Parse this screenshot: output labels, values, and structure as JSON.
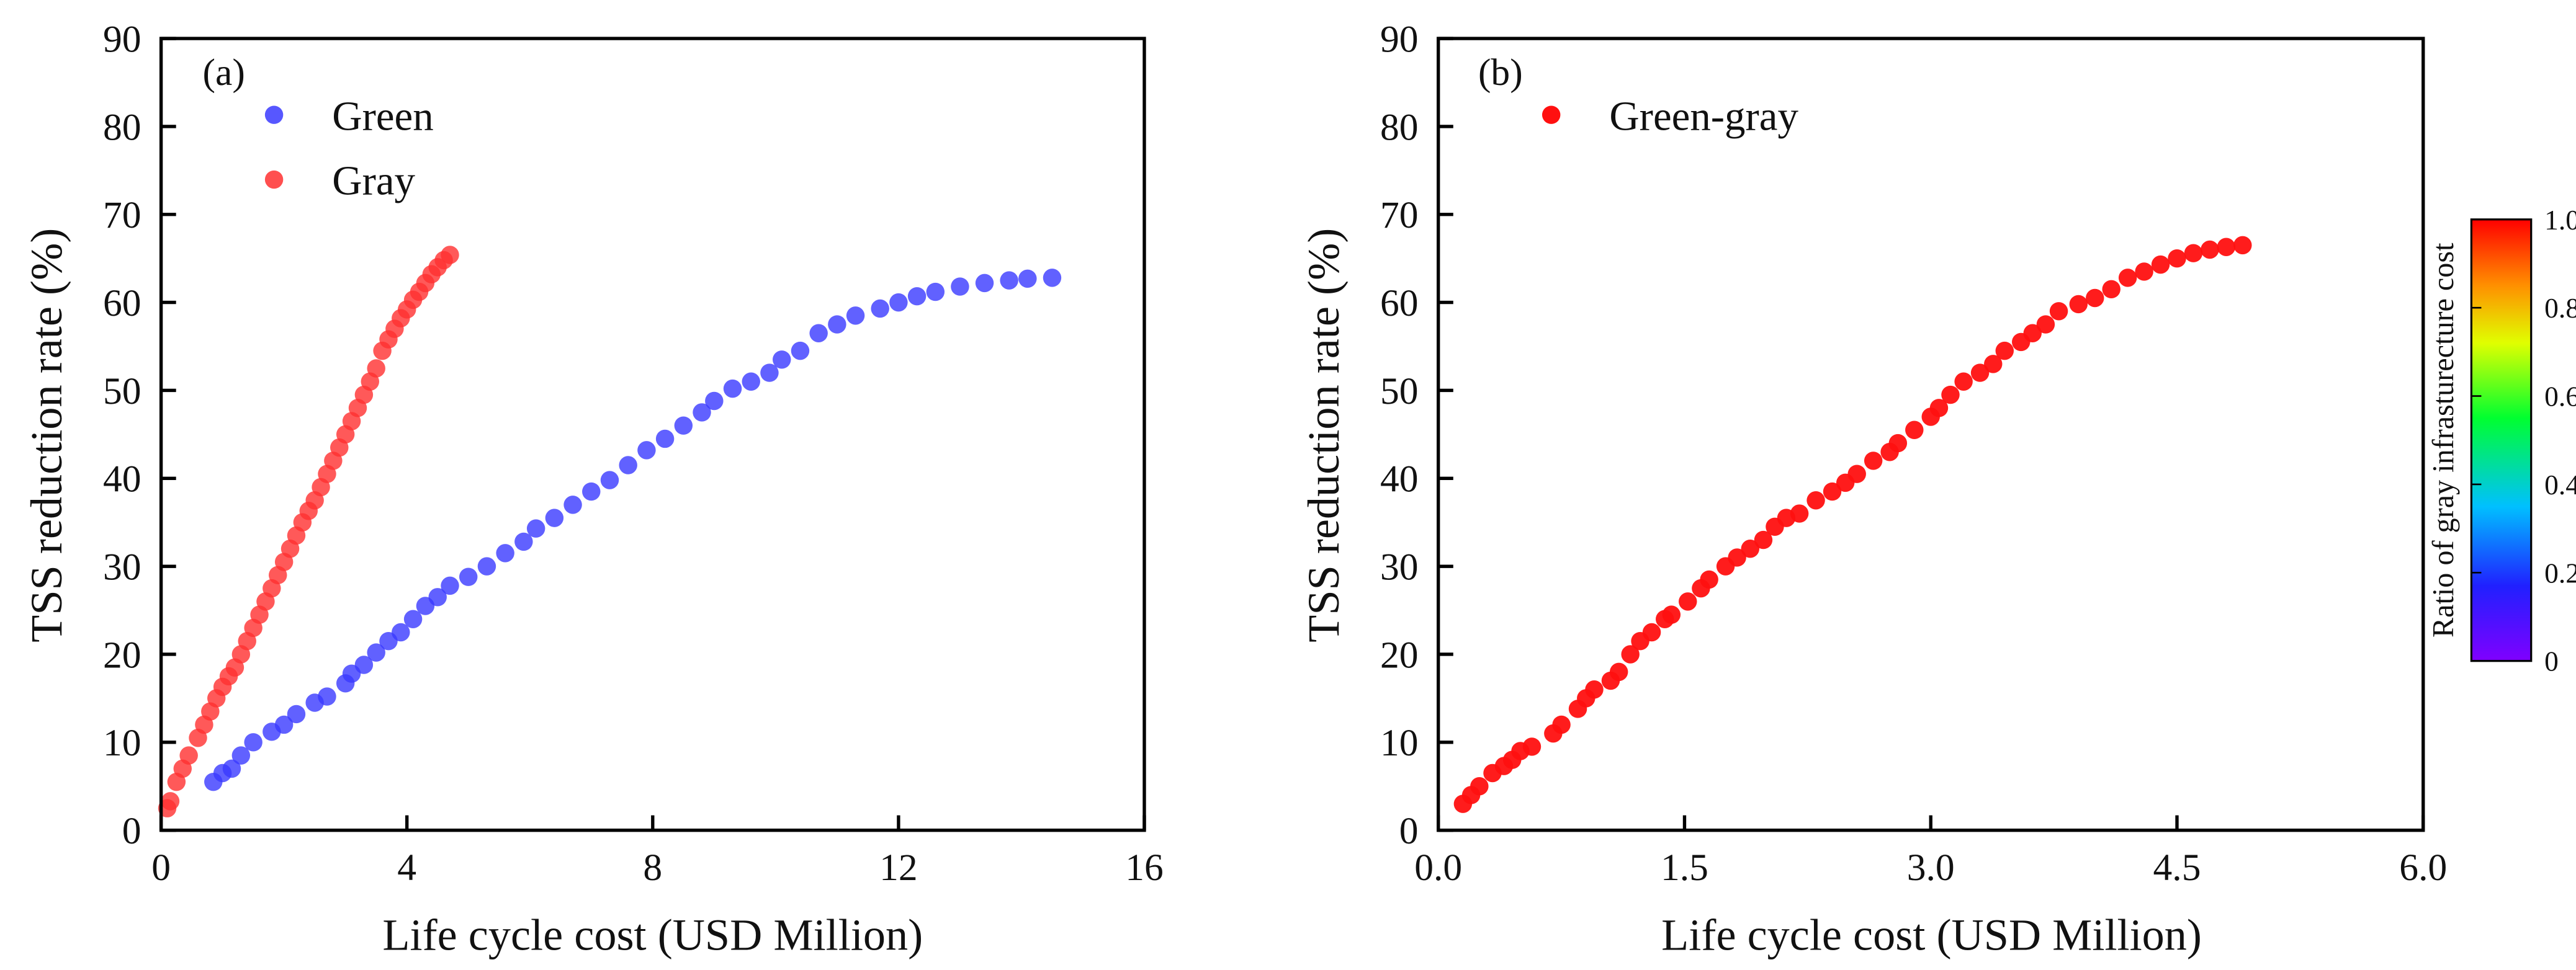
{
  "chart_data": [
    {
      "type": "scatter",
      "panel_label": "(a)",
      "xlabel": "Life cycle cost (USD Million)",
      "ylabel": "TSS reduction rate (%)",
      "xlim": [
        0,
        16
      ],
      "ylim": [
        0,
        90
      ],
      "xticks": [
        0,
        4,
        8,
        12,
        16
      ],
      "yticks": [
        0,
        10,
        20,
        30,
        40,
        50,
        60,
        70,
        80,
        90
      ],
      "grid": false,
      "legend_position": "top-left",
      "series": [
        {
          "name": "Green",
          "color": "#3a3aff",
          "points": [
            [
              0.85,
              5.5
            ],
            [
              1.0,
              6.5
            ],
            [
              1.15,
              7
            ],
            [
              1.3,
              8.5
            ],
            [
              1.5,
              10
            ],
            [
              1.8,
              11.2
            ],
            [
              2.0,
              12
            ],
            [
              2.2,
              13.2
            ],
            [
              2.5,
              14.5
            ],
            [
              2.7,
              15.2
            ],
            [
              3.0,
              16.7
            ],
            [
              3.1,
              17.8
            ],
            [
              3.3,
              18.8
            ],
            [
              3.5,
              20.2
            ],
            [
              3.7,
              21.5
            ],
            [
              3.9,
              22.5
            ],
            [
              4.1,
              24
            ],
            [
              4.3,
              25.5
            ],
            [
              4.5,
              26.5
            ],
            [
              4.7,
              27.8
            ],
            [
              5.0,
              28.8
            ],
            [
              5.3,
              30
            ],
            [
              5.6,
              31.5
            ],
            [
              5.9,
              32.8
            ],
            [
              6.1,
              34.3
            ],
            [
              6.4,
              35.5
            ],
            [
              6.7,
              37
            ],
            [
              7.0,
              38.5
            ],
            [
              7.3,
              39.8
            ],
            [
              7.6,
              41.5
            ],
            [
              7.9,
              43.2
            ],
            [
              8.2,
              44.5
            ],
            [
              8.5,
              46
            ],
            [
              8.8,
              47.5
            ],
            [
              9.0,
              48.8
            ],
            [
              9.3,
              50.2
            ],
            [
              9.6,
              51
            ],
            [
              9.9,
              52
            ],
            [
              10.1,
              53.5
            ],
            [
              10.4,
              54.5
            ],
            [
              10.7,
              56.5
            ],
            [
              11.0,
              57.5
            ],
            [
              11.3,
              58.5
            ],
            [
              11.7,
              59.3
            ],
            [
              12.0,
              60
            ],
            [
              12.3,
              60.7
            ],
            [
              12.6,
              61.2
            ],
            [
              13.0,
              61.8
            ],
            [
              13.4,
              62.2
            ],
            [
              13.8,
              62.5
            ],
            [
              14.1,
              62.7
            ],
            [
              14.5,
              62.8
            ]
          ]
        },
        {
          "name": "Gray",
          "color": "#ff3030",
          "points": [
            [
              0.1,
              2.5
            ],
            [
              0.15,
              3.3
            ],
            [
              0.25,
              5.5
            ],
            [
              0.35,
              7
            ],
            [
              0.45,
              8.5
            ],
            [
              0.6,
              10.5
            ],
            [
              0.7,
              12
            ],
            [
              0.8,
              13.5
            ],
            [
              0.9,
              15
            ],
            [
              1.0,
              16.3
            ],
            [
              1.1,
              17.5
            ],
            [
              1.2,
              18.5
            ],
            [
              1.3,
              20
            ],
            [
              1.4,
              21.5
            ],
            [
              1.5,
              23
            ],
            [
              1.6,
              24.5
            ],
            [
              1.7,
              26
            ],
            [
              1.8,
              27.5
            ],
            [
              1.9,
              29
            ],
            [
              2.0,
              30.5
            ],
            [
              2.1,
              32
            ],
            [
              2.2,
              33.5
            ],
            [
              2.3,
              35
            ],
            [
              2.4,
              36.3
            ],
            [
              2.5,
              37.5
            ],
            [
              2.6,
              39
            ],
            [
              2.7,
              40.5
            ],
            [
              2.8,
              42
            ],
            [
              2.9,
              43.5
            ],
            [
              3.0,
              45
            ],
            [
              3.1,
              46.5
            ],
            [
              3.2,
              48
            ],
            [
              3.3,
              49.5
            ],
            [
              3.4,
              51
            ],
            [
              3.5,
              52.5
            ],
            [
              3.6,
              54.5
            ],
            [
              3.7,
              55.8
            ],
            [
              3.8,
              57
            ],
            [
              3.9,
              58.2
            ],
            [
              4.0,
              59.2
            ],
            [
              4.1,
              60.3
            ],
            [
              4.2,
              61.2
            ],
            [
              4.3,
              62.2
            ],
            [
              4.4,
              63.2
            ],
            [
              4.5,
              64
            ],
            [
              4.6,
              64.8
            ],
            [
              4.7,
              65.4
            ]
          ]
        }
      ]
    },
    {
      "type": "scatter",
      "panel_label": "(b)",
      "xlabel": "Life cycle cost (USD Million)",
      "ylabel": "TSS reduction rate (%)",
      "xlim": [
        0.0,
        6.0
      ],
      "ylim": [
        0,
        90
      ],
      "xticks": [
        "0.0",
        "1.5",
        "3.0",
        "4.5",
        "6.0"
      ],
      "yticks": [
        0,
        10,
        20,
        30,
        40,
        50,
        60,
        70,
        80,
        90
      ],
      "grid": false,
      "legend_position": "top-left",
      "series": [
        {
          "name": "Green-gray",
          "color": "#ff1010",
          "points": [
            [
              0.15,
              3
            ],
            [
              0.2,
              4
            ],
            [
              0.25,
              5
            ],
            [
              0.33,
              6.5
            ],
            [
              0.4,
              7.3
            ],
            [
              0.45,
              8
            ],
            [
              0.5,
              9
            ],
            [
              0.57,
              9.5
            ],
            [
              0.7,
              11
            ],
            [
              0.75,
              12
            ],
            [
              0.85,
              13.8
            ],
            [
              0.9,
              15
            ],
            [
              0.95,
              16
            ],
            [
              1.05,
              17
            ],
            [
              1.1,
              18
            ],
            [
              1.17,
              20
            ],
            [
              1.23,
              21.5
            ],
            [
              1.3,
              22.5
            ],
            [
              1.38,
              24
            ],
            [
              1.42,
              24.5
            ],
            [
              1.52,
              26
            ],
            [
              1.6,
              27.5
            ],
            [
              1.65,
              28.5
            ],
            [
              1.75,
              30
            ],
            [
              1.82,
              31
            ],
            [
              1.9,
              32
            ],
            [
              1.98,
              33
            ],
            [
              2.05,
              34.5
            ],
            [
              2.12,
              35.5
            ],
            [
              2.2,
              36
            ],
            [
              2.3,
              37.5
            ],
            [
              2.4,
              38.5
            ],
            [
              2.48,
              39.5
            ],
            [
              2.55,
              40.5
            ],
            [
              2.65,
              42
            ],
            [
              2.75,
              43
            ],
            [
              2.8,
              44
            ],
            [
              2.9,
              45.5
            ],
            [
              3.0,
              47
            ],
            [
              3.05,
              48
            ],
            [
              3.12,
              49.5
            ],
            [
              3.2,
              51
            ],
            [
              3.3,
              52
            ],
            [
              3.38,
              53
            ],
            [
              3.45,
              54.5
            ],
            [
              3.55,
              55.5
            ],
            [
              3.62,
              56.5
            ],
            [
              3.7,
              57.5
            ],
            [
              3.78,
              59
            ],
            [
              3.9,
              59.8
            ],
            [
              4.0,
              60.5
            ],
            [
              4.1,
              61.5
            ],
            [
              4.2,
              62.8
            ],
            [
              4.3,
              63.5
            ],
            [
              4.4,
              64.3
            ],
            [
              4.5,
              65
            ],
            [
              4.6,
              65.6
            ],
            [
              4.7,
              66
            ],
            [
              4.8,
              66.3
            ],
            [
              4.9,
              66.5
            ]
          ]
        }
      ],
      "colorbar": {
        "label": "Ratio of gray infrasturecture cost",
        "ticks": [
          "0",
          "0.2",
          "0.4",
          "0.6",
          "0.8",
          "1.0"
        ],
        "range": [
          0,
          1
        ],
        "colors": [
          "#8000ff",
          "#2020ff",
          "#00c0ff",
          "#00ff30",
          "#e0ff00",
          "#ff9000",
          "#ff0000"
        ]
      }
    }
  ]
}
